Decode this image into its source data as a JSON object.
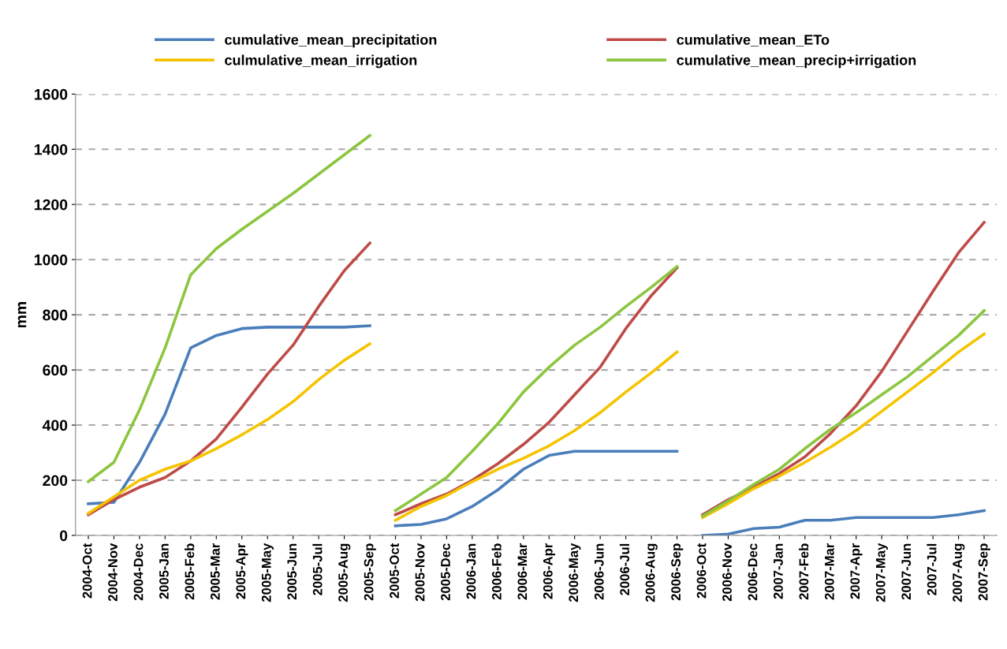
{
  "chart_data": {
    "type": "line",
    "ylabel": "mm",
    "categories": [
      "2004-Oct",
      "2004-Nov",
      "2004-Dec",
      "2005-Jan",
      "2005-Feb",
      "2005-Mar",
      "2005-Apr",
      "2005-May",
      "2005-Jun",
      "2005-Jul",
      "2005-Aug",
      "2005-Sep",
      "2005-Oct",
      "2005-Nov",
      "2005-Dec",
      "2006-Jan",
      "2006-Feb",
      "2006-Mar",
      "2006-Apr",
      "2006-May",
      "2006-Jun",
      "2006-Jul",
      "2006-Aug",
      "2006-Sep",
      "2006-Oct",
      "2006-Nov",
      "2006-Dec",
      "2007-Jan",
      "2007-Feb",
      "2007-Mar",
      "2007-Apr",
      "2007-May",
      "2007-Jun",
      "2007-Jul",
      "2007-Aug",
      "2007-Sep"
    ],
    "ylim": [
      0,
      1600
    ],
    "yticks": [
      0,
      200,
      400,
      600,
      800,
      1000,
      1200,
      1400,
      1600
    ],
    "grid": "y",
    "legend": "top",
    "marker": "none",
    "line_style": "solid",
    "series": [
      {
        "name": "cumulative_mean_precipitation",
        "color": "#4a7ebb",
        "values": [
          115,
          120,
          265,
          440,
          680,
          725,
          750,
          755,
          755,
          755,
          755,
          760,
          null,
          null,
          null,
          null,
          null,
          null,
          null,
          null,
          null,
          null,
          null,
          null,
          null,
          null,
          null,
          null,
          null,
          null,
          null,
          null,
          null,
          null,
          null,
          null
        ]
      },
      {
        "name": "cumulative_mean_ETo",
        "color": "#be4b48",
        "values": [
          75,
          130,
          175,
          210,
          270,
          350,
          465,
          585,
          690,
          830,
          960,
          1060,
          null,
          null,
          null,
          null,
          null,
          null,
          null,
          null,
          null,
          null,
          null,
          null,
          null,
          null,
          null,
          null,
          null,
          null,
          null,
          null,
          null,
          null,
          null,
          null
        ]
      },
      {
        "name": "culmulative_mean_irrigation",
        "color": "#f5c400",
        "values": [
          80,
          140,
          200,
          240,
          270,
          315,
          365,
          420,
          485,
          565,
          635,
          695,
          null,
          null,
          null,
          null,
          null,
          null,
          null,
          null,
          null,
          null,
          null,
          null,
          null,
          null,
          null,
          null,
          null,
          null,
          null,
          null,
          null,
          null,
          null,
          null
        ]
      },
      {
        "name": "cumulative_mean_precip+irrigation",
        "color": "#8cc63f",
        "values": [
          195,
          265,
          455,
          680,
          945,
          1040,
          1110,
          1175,
          1240,
          1310,
          1380,
          1450,
          null,
          null,
          null,
          null,
          null,
          null,
          null,
          null,
          null,
          null,
          null,
          null,
          null,
          null,
          null,
          null,
          null,
          null,
          null,
          null,
          null,
          null,
          null,
          null
        ]
      },
      {
        "color": "#4a7ebb",
        "values": [
          null,
          null,
          null,
          null,
          null,
          null,
          null,
          null,
          null,
          null,
          null,
          null,
          35,
          40,
          60,
          105,
          165,
          240,
          290,
          305,
          305,
          305,
          305,
          305,
          null,
          null,
          null,
          null,
          null,
          null,
          null,
          null,
          null,
          null,
          null,
          null
        ]
      },
      {
        "color": "#be4b48",
        "values": [
          null,
          null,
          null,
          null,
          null,
          null,
          null,
          null,
          null,
          null,
          null,
          null,
          75,
          115,
          150,
          200,
          260,
          330,
          410,
          510,
          610,
          750,
          870,
          970,
          null,
          null,
          null,
          null,
          null,
          null,
          null,
          null,
          null,
          null,
          null,
          null
        ]
      },
      {
        "color": "#f5c400",
        "values": [
          null,
          null,
          null,
          null,
          null,
          null,
          null,
          null,
          null,
          null,
          null,
          null,
          55,
          105,
          145,
          195,
          240,
          280,
          325,
          380,
          445,
          520,
          590,
          665,
          null,
          null,
          null,
          null,
          null,
          null,
          null,
          null,
          null,
          null,
          null,
          null
        ]
      },
      {
        "color": "#8cc63f",
        "values": [
          null,
          null,
          null,
          null,
          null,
          null,
          null,
          null,
          null,
          null,
          null,
          null,
          90,
          150,
          210,
          305,
          405,
          520,
          610,
          690,
          755,
          830,
          900,
          975,
          null,
          null,
          null,
          null,
          null,
          null,
          null,
          null,
          null,
          null,
          null,
          null
        ]
      },
      {
        "color": "#4a7ebb",
        "values": [
          null,
          null,
          null,
          null,
          null,
          null,
          null,
          null,
          null,
          null,
          null,
          null,
          null,
          null,
          null,
          null,
          null,
          null,
          null,
          null,
          null,
          null,
          null,
          null,
          0,
          5,
          25,
          30,
          55,
          55,
          65,
          65,
          65,
          65,
          75,
          90
        ]
      },
      {
        "color": "#be4b48",
        "values": [
          null,
          null,
          null,
          null,
          null,
          null,
          null,
          null,
          null,
          null,
          null,
          null,
          null,
          null,
          null,
          null,
          null,
          null,
          null,
          null,
          null,
          null,
          null,
          null,
          75,
          130,
          175,
          225,
          285,
          370,
          470,
          595,
          740,
          885,
          1025,
          1135
        ]
      },
      {
        "color": "#f5c400",
        "values": [
          null,
          null,
          null,
          null,
          null,
          null,
          null,
          null,
          null,
          null,
          null,
          null,
          null,
          null,
          null,
          null,
          null,
          null,
          null,
          null,
          null,
          null,
          null,
          null,
          65,
          115,
          170,
          215,
          265,
          320,
          380,
          450,
          520,
          590,
          665,
          730
        ]
      },
      {
        "color": "#8cc63f",
        "values": [
          null,
          null,
          null,
          null,
          null,
          null,
          null,
          null,
          null,
          null,
          null,
          null,
          null,
          null,
          null,
          null,
          null,
          null,
          null,
          null,
          null,
          null,
          null,
          null,
          70,
          125,
          185,
          240,
          315,
          385,
          445,
          510,
          575,
          650,
          725,
          815
        ]
      }
    ]
  }
}
